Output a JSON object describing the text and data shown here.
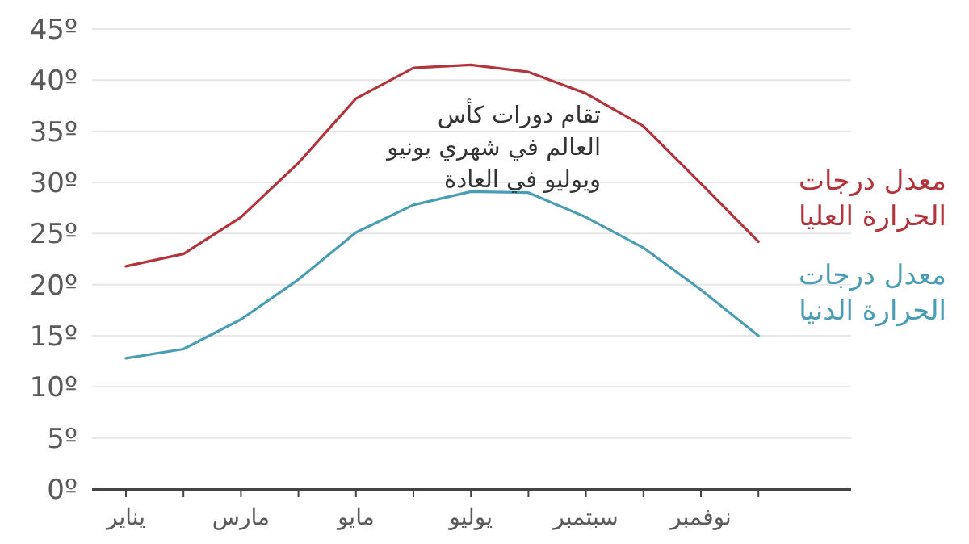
{
  "chart_data": {
    "type": "line",
    "categories": [
      "يناير",
      null,
      "مارس",
      null,
      "مايو",
      null,
      "يوليو",
      null,
      "سبتمبر",
      null,
      "نوفمبر",
      null
    ],
    "series": [
      {
        "name": "معدل درجات\nالحرارة العليا",
        "color": "#b2343c",
        "values": [
          21.8,
          23.0,
          26.6,
          31.9,
          38.2,
          41.2,
          41.5,
          40.8,
          38.7,
          35.5,
          29.9,
          24.2
        ]
      },
      {
        "name": "معدل درجات\nالحرارة الدنيا",
        "color": "#4a9db3",
        "values": [
          12.8,
          13.7,
          16.6,
          20.5,
          25.1,
          27.8,
          29.1,
          29.0,
          26.6,
          23.6,
          19.5,
          15.0
        ]
      }
    ],
    "ylim": [
      0,
      45
    ],
    "yticks": [
      {
        "value": 0,
        "label": "0º"
      },
      {
        "value": 5,
        "label": "5º"
      },
      {
        "value": 10,
        "label": "10º"
      },
      {
        "value": 15,
        "label": "15º"
      },
      {
        "value": 20,
        "label": "20º"
      },
      {
        "value": 25,
        "label": "25º"
      },
      {
        "value": 30,
        "label": "30º"
      },
      {
        "value": 35,
        "label": "35º"
      },
      {
        "value": 40,
        "label": "40º"
      },
      {
        "value": 45,
        "label": "45º"
      }
    ],
    "grid": "y",
    "marker": "none",
    "line_style": "solid",
    "annotations": [
      "تقام دورات كأس\nالعالم في شهري يونيو\nويوليو في العادة"
    ]
  }
}
